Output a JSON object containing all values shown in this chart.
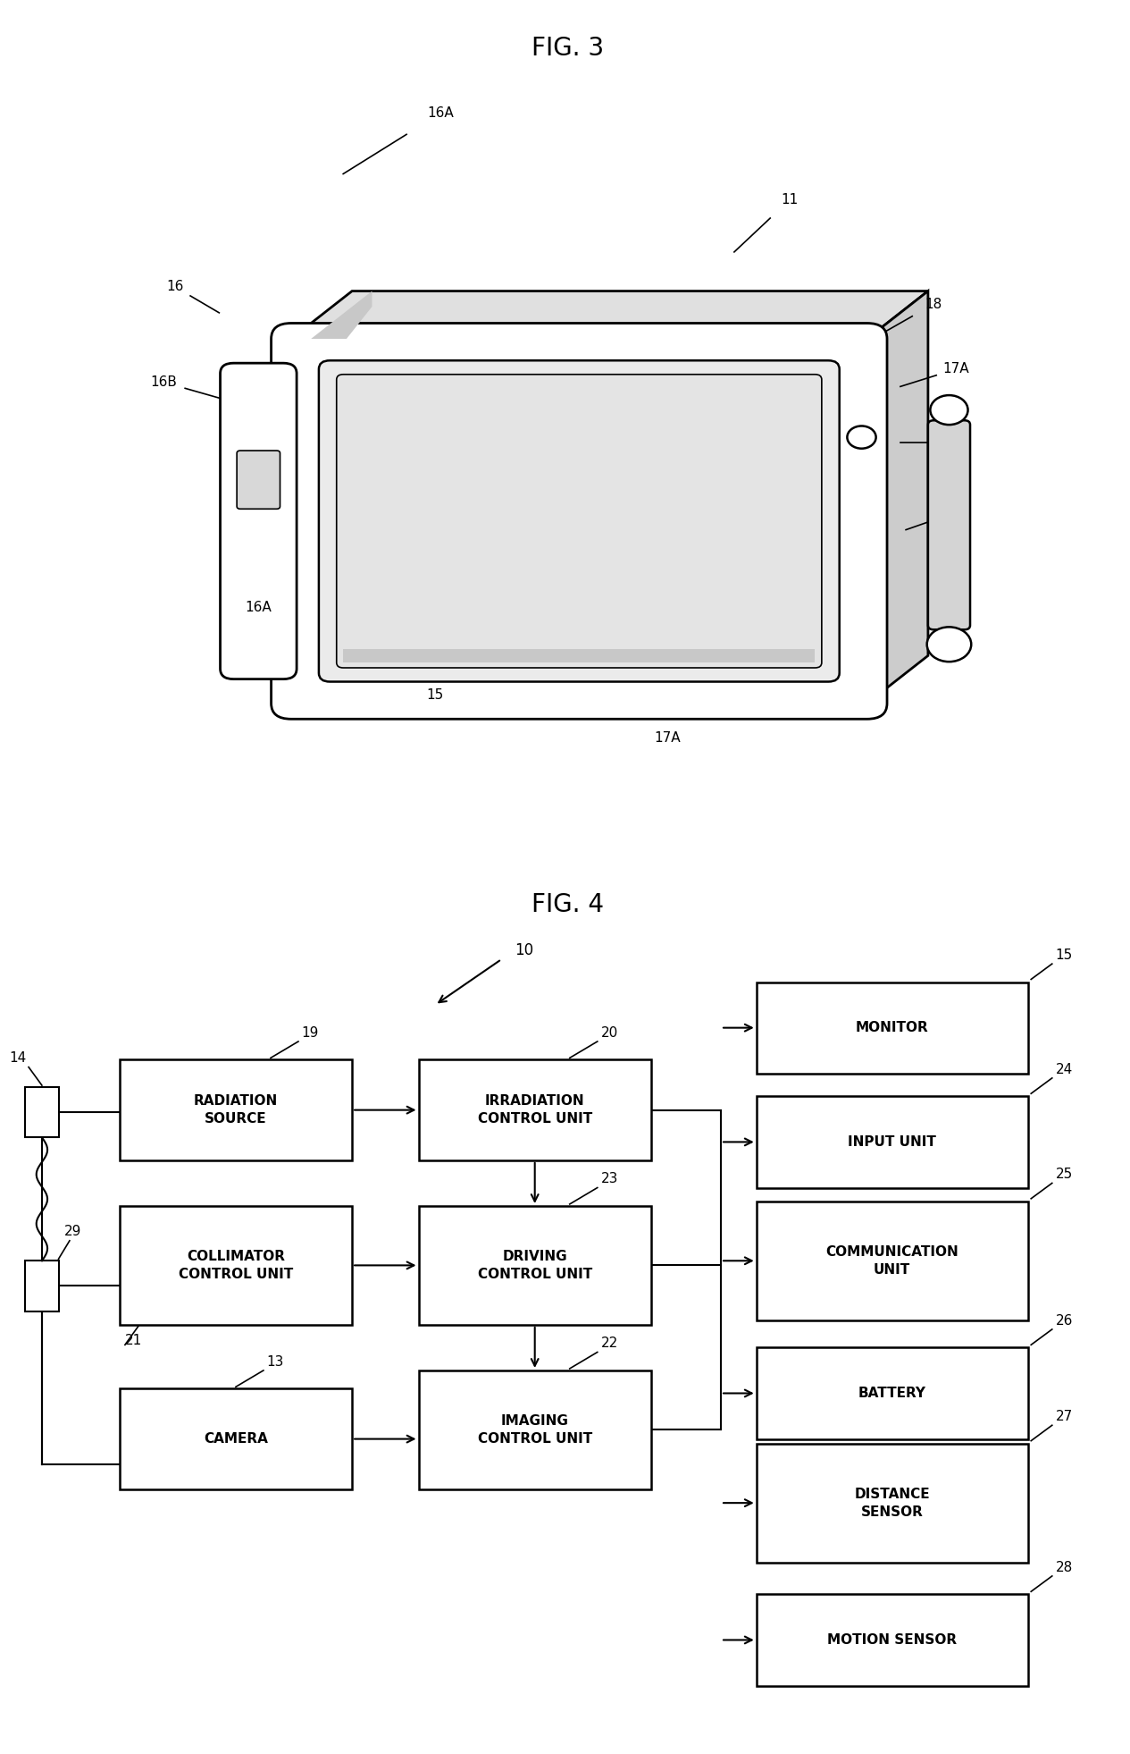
{
  "fig_title_1": "FIG. 3",
  "fig_title_2": "FIG. 4",
  "bg_color": "#ffffff",
  "line_color": "#000000",
  "text_color": "#000000",
  "system_id": "10",
  "font_size_title": 20,
  "font_size_label": 11,
  "font_size_id": 11,
  "right_boxes": [
    [
      8.2,
      1.0,
      "MONITOR",
      "15"
    ],
    [
      6.7,
      1.0,
      "INPUT UNIT",
      "24"
    ],
    [
      5.0,
      1.3,
      "COMMUNICATION\nUNIT",
      "25"
    ],
    [
      3.5,
      1.0,
      "BATTERY",
      "26"
    ],
    [
      1.9,
      1.3,
      "DISTANCE\nSENSOR",
      "27"
    ],
    [
      0.35,
      1.0,
      "MOTION SENSOR",
      "28"
    ]
  ],
  "left_blocks": [
    [
      1.2,
      6.6,
      2.2,
      1.2,
      "RADIATION\nSOURCE",
      "19"
    ],
    [
      1.2,
      4.5,
      2.2,
      1.2,
      "COLLIMATOR\nCONTROL UNIT",
      "21"
    ],
    [
      1.2,
      2.4,
      2.2,
      1.0,
      "CAMERA",
      "13"
    ]
  ],
  "mid_blocks": [
    [
      4.1,
      6.6,
      2.2,
      1.2,
      "IRRADIATION\nCONTROL UNIT",
      "20"
    ],
    [
      4.1,
      4.5,
      2.2,
      1.2,
      "DRIVING\nCONTROL UNIT",
      "23"
    ],
    [
      4.1,
      2.4,
      2.2,
      1.2,
      "IMAGING\nCONTROL UNIT",
      "22"
    ]
  ]
}
